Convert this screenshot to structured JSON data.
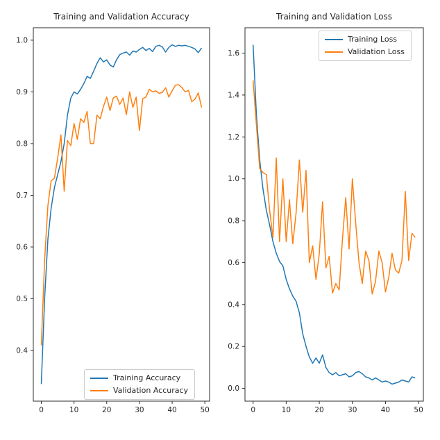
{
  "figure": {
    "background": "#ffffff",
    "text_color": "#262626",
    "spine_color": "#2b2b2b"
  },
  "chart_data": [
    {
      "type": "line",
      "title": "Training and Validation Accuracy",
      "xlabel": "",
      "ylabel": "",
      "x_count": 50,
      "xlim": [
        -2.45,
        51.45
      ],
      "ylim": [
        0.302,
        1.024
      ],
      "xticks": [
        0,
        10,
        20,
        30,
        40,
        50
      ],
      "xtick_labels": [
        "0",
        "10",
        "20",
        "30",
        "40",
        "50"
      ],
      "yticks": [
        0.4,
        0.5,
        0.6,
        0.7,
        0.8,
        0.9,
        1.0
      ],
      "ytick_labels": [
        "0.4",
        "0.5",
        "0.6",
        "0.7",
        "0.8",
        "0.9",
        "1.0"
      ],
      "grid": false,
      "legend_position": "lower right",
      "series": [
        {
          "name": "Training Accuracy",
          "color": "#1f77b4",
          "values": [
            0.335,
            0.5,
            0.615,
            0.675,
            0.715,
            0.74,
            0.765,
            0.8,
            0.855,
            0.888,
            0.9,
            0.896,
            0.905,
            0.916,
            0.93,
            0.926,
            0.94,
            0.955,
            0.966,
            0.958,
            0.962,
            0.952,
            0.948,
            0.962,
            0.972,
            0.975,
            0.977,
            0.971,
            0.979,
            0.977,
            0.982,
            0.986,
            0.98,
            0.984,
            0.978,
            0.988,
            0.99,
            0.987,
            0.977,
            0.986,
            0.991,
            0.988,
            0.99,
            0.989,
            0.99,
            0.988,
            0.986,
            0.983,
            0.976,
            0.985
          ]
        },
        {
          "name": "Validation Accuracy",
          "color": "#ff7f0e",
          "values": [
            0.41,
            0.575,
            0.68,
            0.728,
            0.733,
            0.772,
            0.817,
            0.708,
            0.806,
            0.796,
            0.839,
            0.808,
            0.848,
            0.841,
            0.862,
            0.8,
            0.8,
            0.855,
            0.848,
            0.872,
            0.89,
            0.864,
            0.888,
            0.892,
            0.876,
            0.888,
            0.856,
            0.9,
            0.87,
            0.89,
            0.825,
            0.887,
            0.89,
            0.905,
            0.9,
            0.902,
            0.897,
            0.899,
            0.908,
            0.89,
            0.902,
            0.913,
            0.914,
            0.908,
            0.9,
            0.903,
            0.881,
            0.886,
            0.898,
            0.87
          ]
        }
      ]
    },
    {
      "type": "line",
      "title": "Training and Validation Loss",
      "xlabel": "",
      "ylabel": "",
      "x_count": 50,
      "xlim": [
        -2.45,
        51.45
      ],
      "ylim": [
        -0.061,
        1.721
      ],
      "xticks": [
        0,
        10,
        20,
        30,
        40,
        50
      ],
      "xtick_labels": [
        "0",
        "10",
        "20",
        "30",
        "40",
        "50"
      ],
      "yticks": [
        0.0,
        0.2,
        0.4,
        0.6,
        0.8,
        1.0,
        1.2,
        1.4,
        1.6
      ],
      "ytick_labels": [
        "0.0",
        "0.2",
        "0.4",
        "0.6",
        "0.8",
        "1.0",
        "1.2",
        "1.4",
        "1.6"
      ],
      "grid": false,
      "legend_position": "upper right",
      "series": [
        {
          "name": "Training Loss",
          "color": "#1f77b4",
          "values": [
            1.64,
            1.31,
            1.09,
            0.95,
            0.85,
            0.78,
            0.7,
            0.645,
            0.605,
            0.585,
            0.52,
            0.475,
            0.44,
            0.415,
            0.36,
            0.26,
            0.2,
            0.15,
            0.12,
            0.145,
            0.12,
            0.16,
            0.1,
            0.075,
            0.065,
            0.075,
            0.06,
            0.065,
            0.07,
            0.055,
            0.06,
            0.075,
            0.08,
            0.07,
            0.055,
            0.05,
            0.04,
            0.05,
            0.04,
            0.03,
            0.035,
            0.03,
            0.02,
            0.025,
            0.03,
            0.04,
            0.035,
            0.03,
            0.055,
            0.05
          ]
        },
        {
          "name": "Validation Loss",
          "color": "#ff7f0e",
          "values": [
            1.47,
            1.26,
            1.05,
            1.03,
            1.02,
            0.85,
            0.72,
            1.1,
            0.7,
            1.0,
            0.7,
            0.9,
            0.69,
            0.84,
            1.09,
            0.84,
            1.04,
            0.6,
            0.68,
            0.52,
            0.64,
            0.89,
            0.575,
            0.63,
            0.455,
            0.5,
            0.47,
            0.71,
            0.91,
            0.665,
            1.0,
            0.79,
            0.6,
            0.5,
            0.655,
            0.61,
            0.45,
            0.51,
            0.655,
            0.6,
            0.46,
            0.53,
            0.645,
            0.565,
            0.55,
            0.61,
            0.94,
            0.61,
            0.74,
            0.72
          ]
        }
      ]
    }
  ]
}
